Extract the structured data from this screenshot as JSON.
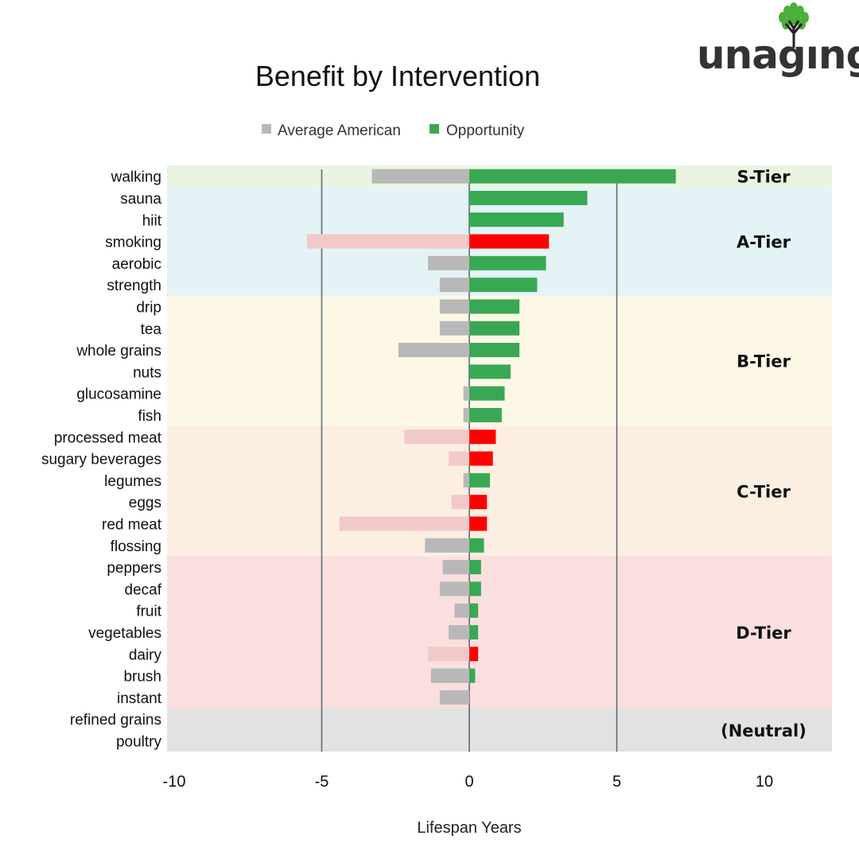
{
  "logo": {
    "text": "unagıng",
    "tree_color": "#4caf3a"
  },
  "chart_data": {
    "type": "bar",
    "orientation": "horizontal",
    "title": "Benefit by Intervention",
    "xlabel": "Lifespan Years",
    "ylabel": "",
    "xlim": [
      -10,
      12.5
    ],
    "xticks": [
      -10,
      -5,
      0,
      5,
      10
    ],
    "vertical_reference_lines": [
      -5,
      0,
      5
    ],
    "legend": {
      "position": "top",
      "entries": [
        {
          "name": "Average American",
          "color": "#b8b8b8"
        },
        {
          "name": "Opportunity",
          "color": "#39a853"
        }
      ]
    },
    "categories": [
      "walking",
      "sauna",
      "hiit",
      "smoking",
      "aerobic",
      "strength",
      "drip",
      "tea",
      "whole grains",
      "nuts",
      "glucosamine",
      "fish",
      "processed meat",
      "sugary beverages",
      "legumes",
      "eggs",
      "red meat",
      "flossing",
      "peppers",
      "decaf",
      "fruit",
      "vegetables",
      "dairy",
      "brush",
      "instant",
      "refined grains",
      "poultry"
    ],
    "series": [
      {
        "name": "Average American",
        "values": [
          -3.3,
          0,
          0,
          -5.5,
          -1.4,
          -1.0,
          -1.0,
          -1.0,
          -2.4,
          0,
          -0.2,
          -0.2,
          -2.2,
          -0.7,
          -0.2,
          -0.6,
          -4.4,
          -1.5,
          -0.9,
          -1.0,
          -0.5,
          -0.7,
          -1.4,
          -1.3,
          -1.0,
          0,
          0
        ]
      },
      {
        "name": "Opportunity",
        "values": [
          7.0,
          4.0,
          3.2,
          2.7,
          2.6,
          2.3,
          1.7,
          1.7,
          1.7,
          1.4,
          1.2,
          1.1,
          0.9,
          0.8,
          0.7,
          0.6,
          0.6,
          0.5,
          0.4,
          0.4,
          0.3,
          0.3,
          0.3,
          0.2,
          0,
          0,
          0
        ]
      }
    ],
    "harmful": [
      false,
      false,
      false,
      true,
      false,
      false,
      false,
      false,
      false,
      false,
      false,
      false,
      true,
      true,
      false,
      true,
      true,
      false,
      false,
      false,
      false,
      false,
      true,
      false,
      false,
      false,
      false
    ],
    "colors": {
      "average": "#b8b8b8",
      "opportunity": "#39a853",
      "harmful_average": "#f2c9c9",
      "harmful_opportunity": "#ff0000",
      "reference_line": "#5f6b74"
    },
    "tiers": [
      {
        "label": "S-Tier",
        "from": 0,
        "to": 0,
        "color": "#e9f5e1"
      },
      {
        "label": "A-Tier",
        "from": 1,
        "to": 5,
        "color": "#e3f3f6"
      },
      {
        "label": "B-Tier",
        "from": 6,
        "to": 11,
        "color": "#fdf8e6"
      },
      {
        "label": "C-Tier",
        "from": 12,
        "to": 17,
        "color": "#fdeee2"
      },
      {
        "label": "D-Tier",
        "from": 18,
        "to": 24,
        "color": "#fbdfdf"
      },
      {
        "label": "(Neutral)",
        "from": 25,
        "to": 26,
        "color": "#e2e2e2"
      }
    ]
  }
}
